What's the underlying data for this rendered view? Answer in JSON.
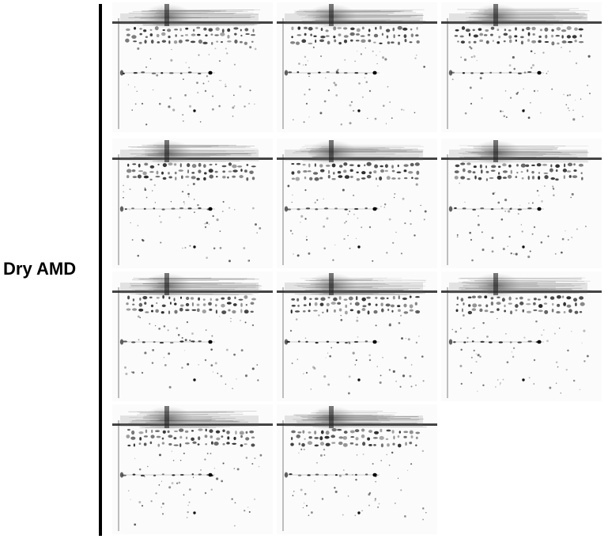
{
  "figure": {
    "group_label": "Dry AMD",
    "panel_rows": 4,
    "panel_columns": 3,
    "panel_count": 11,
    "panels_per_row": [
      3,
      3,
      3,
      2
    ],
    "image_type": "2D gel electrophoresis protein spot maps (grayscale)"
  }
}
